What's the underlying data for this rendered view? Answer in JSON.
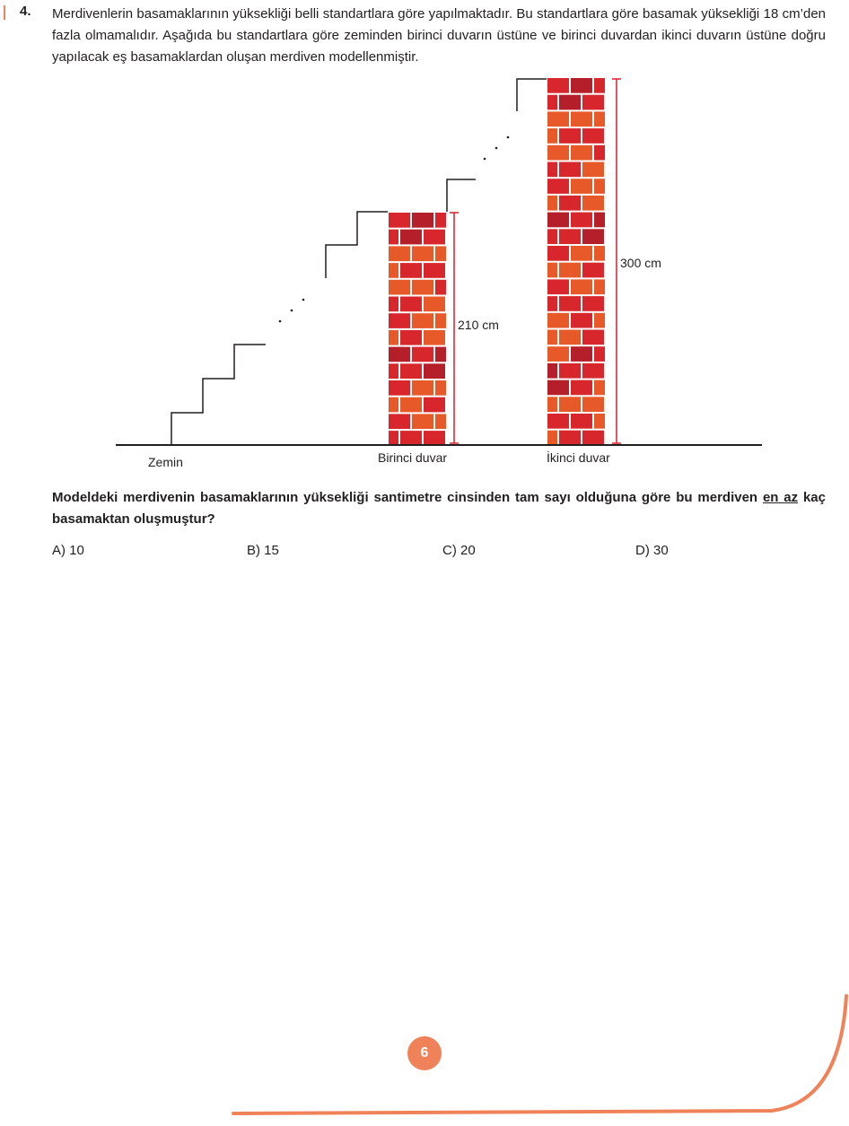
{
  "question": {
    "number": "4.",
    "intro": "Merdivenlerin basamaklarının yüksekliği belli standartlara göre yapılmaktadır. Bu standartlara göre basamak yüksekliği 18 cm’den fazla olmamalıdır. Aşağıda bu standartlara göre zeminden birinci duvarın üstüne ve birinci duvardan ikinci duvarın üstüne doğru yapılacak eş basamaklardan oluşan merdiven modellenmiştir.",
    "stem_part1": "Modeldeki merdivenin basamaklarının yüksekliği santimetre cinsinden tam sayı olduğuna göre bu merdiven ",
    "stem_underlined": "en az",
    "stem_part2": " kaç basamaktan oluşmuştur?"
  },
  "figure": {
    "ground_label": "Zemin",
    "wall1_label": "Birinci duvar",
    "wall2_label": "İkinci duvar",
    "wall1_height_label": "210 cm",
    "wall2_height_label": "300 cm"
  },
  "options": [
    {
      "label": "A) 10"
    },
    {
      "label": "B) 15"
    },
    {
      "label": "C) 20"
    },
    {
      "label": "D) 30"
    }
  ],
  "page_number": "6",
  "colors": {
    "brick_red": "#d7262c",
    "brick_orange": "#e8592a",
    "brick_dark": "#b51f2a",
    "mortar": "#ffffff",
    "measure": "#e11d2b",
    "accent": "#f0825a"
  }
}
